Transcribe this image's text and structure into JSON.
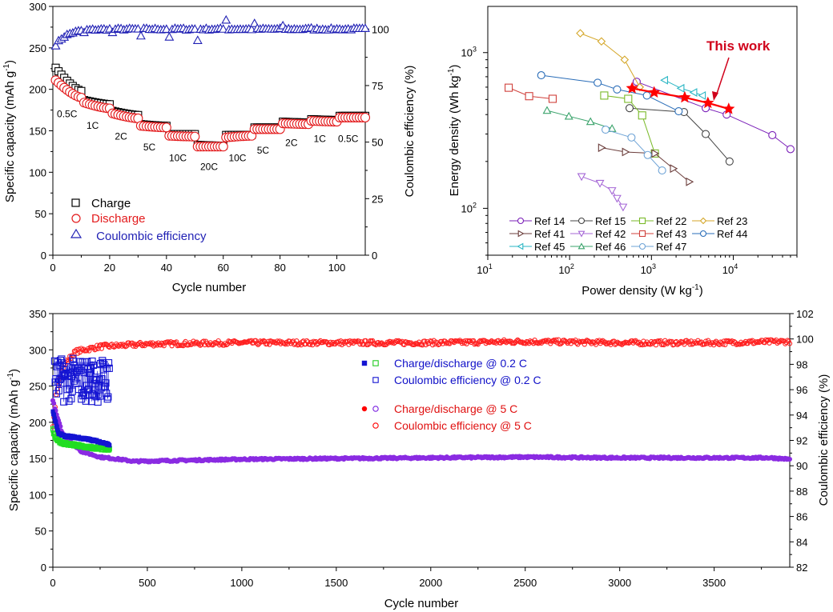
{
  "chart_data": [
    {
      "id": "rate",
      "type": "scatter",
      "title": "",
      "xlabel": "Cycle number",
      "ylabel": "Specific capacity (mAh g⁻¹)",
      "ylabel_main": "Specific capacity (mAh g",
      "ylabel_sup": "-1",
      "y2label": "Coulombic efficiency (%)",
      "xlim": [
        0,
        110
      ],
      "ylim": [
        0,
        300
      ],
      "y2lim": [
        0,
        110
      ],
      "xticks": [
        0,
        20,
        40,
        60,
        80,
        100
      ],
      "yticks": [
        0,
        50,
        100,
        150,
        200,
        250,
        300
      ],
      "y2ticks": [
        0,
        25,
        50,
        75,
        100
      ],
      "legend": [
        {
          "name": "Charge",
          "marker": "square",
          "color": "#000000"
        },
        {
          "name": "Discharge",
          "marker": "circle",
          "color": "#e31a1c"
        },
        {
          "name": " Coulombic efficiency",
          "marker": "triangle",
          "color": "#1f1fb4"
        }
      ],
      "rate_labels": [
        {
          "text": "0.5C",
          "x": 5,
          "y": 180
        },
        {
          "text": "1C",
          "x": 14,
          "y": 166
        },
        {
          "text": "2C",
          "x": 24,
          "y": 153
        },
        {
          "text": "5C",
          "x": 34,
          "y": 140
        },
        {
          "text": "10C",
          "x": 44,
          "y": 127
        },
        {
          "text": "20C",
          "x": 55,
          "y": 116
        },
        {
          "text": "10C",
          "x": 65,
          "y": 127
        },
        {
          "text": "5C",
          "x": 74,
          "y": 136
        },
        {
          "text": "2C",
          "x": 84,
          "y": 145
        },
        {
          "text": "1C",
          "x": 94,
          "y": 150
        },
        {
          "text": "0.5C",
          "x": 104,
          "y": 150
        }
      ],
      "segments": [
        {
          "rate": "0.5C",
          "from": 1,
          "to": 10,
          "charge_start": 226,
          "charge_end": 198,
          "discharge_start": 211,
          "discharge_end": 190
        },
        {
          "rate": "1C",
          "from": 11,
          "to": 20,
          "charge_start": 187,
          "charge_end": 182,
          "discharge_start": 184,
          "discharge_end": 177
        },
        {
          "rate": "2C",
          "from": 21,
          "to": 30,
          "charge_start": 174,
          "charge_end": 169,
          "discharge_start": 171,
          "discharge_end": 165
        },
        {
          "rate": "5C",
          "from": 31,
          "to": 40,
          "charge_start": 158,
          "charge_end": 156,
          "discharge_start": 156,
          "discharge_end": 154
        },
        {
          "rate": "10C",
          "from": 41,
          "to": 50,
          "charge_start": 146,
          "charge_end": 146,
          "discharge_start": 144,
          "discharge_end": 143
        },
        {
          "rate": "20C",
          "from": 51,
          "to": 60,
          "charge_start": 133,
          "charge_end": 132,
          "discharge_start": 131,
          "discharge_end": 131
        },
        {
          "rate": "10C",
          "from": 61,
          "to": 70,
          "charge_start": 145,
          "charge_end": 145,
          "discharge_start": 142,
          "discharge_end": 144
        },
        {
          "rate": "5C",
          "from": 71,
          "to": 80,
          "charge_start": 154,
          "charge_end": 154,
          "discharge_start": 152,
          "discharge_end": 152
        },
        {
          "rate": "2C",
          "from": 81,
          "to": 90,
          "charge_start": 161,
          "charge_end": 160,
          "discharge_start": 159,
          "discharge_end": 158
        },
        {
          "rate": "1C",
          "from": 91,
          "to": 100,
          "charge_start": 164,
          "charge_end": 163,
          "discharge_start": 162,
          "discharge_end": 161
        },
        {
          "rate": "0.5C",
          "from": 101,
          "to": 110,
          "charge_start": 168,
          "charge_end": 168,
          "discharge_start": 166,
          "discharge_end": 166
        }
      ],
      "ce_series": {
        "start": 93,
        "plateau": 100,
        "outliers": [
          {
            "x": 11,
            "y": 98.5
          },
          {
            "x": 21,
            "y": 98.5
          },
          {
            "x": 31,
            "y": 97
          },
          {
            "x": 41,
            "y": 96.5
          },
          {
            "x": 51,
            "y": 95
          },
          {
            "x": 61,
            "y": 104
          },
          {
            "x": 71,
            "y": 102.5
          },
          {
            "x": 81,
            "y": 101.5
          },
          {
            "x": 91,
            "y": 100.5
          },
          {
            "x": 101,
            "y": 100
          }
        ]
      }
    },
    {
      "id": "ragone",
      "type": "line",
      "title": "",
      "xlabel_main": "Power density (W kg",
      "xlabel_sup": "-1",
      "ylabel_main": "Energy density (Wh kg",
      "ylabel_sup": "-1",
      "xscale": "log",
      "yscale": "log",
      "xlim": [
        10,
        60000
      ],
      "ylim": [
        50,
        1980
      ],
      "xticks": [
        {
          "base": "10",
          "exp": "1"
        },
        {
          "base": "10",
          "exp": "2"
        },
        {
          "base": "10",
          "exp": "3"
        },
        {
          "base": "10",
          "exp": "4"
        }
      ],
      "yticks": [
        {
          "base": "10",
          "exp": "2"
        },
        {
          "base": "10",
          "exp": "3"
        }
      ],
      "annotation": {
        "text": "This work",
        "color": "#d0021b"
      },
      "legend_position": "bottom",
      "series": [
        {
          "name": "This work",
          "color": "#ff0000",
          "marker": "star",
          "points": [
            [
              580,
              590
            ],
            [
              1080,
              555
            ],
            [
              2550,
              515
            ],
            [
              4900,
              475
            ],
            [
              8800,
              435
            ]
          ]
        },
        {
          "name": "Ref 14",
          "color": "#7a1fb8",
          "marker": "circle",
          "points": [
            [
              660,
              650
            ],
            [
              4600,
              440
            ],
            [
              8300,
              400
            ],
            [
              30000,
              295
            ],
            [
              50000,
              240
            ]
          ]
        },
        {
          "name": "Ref 15",
          "color": "#444444",
          "marker": "circle",
          "points": [
            [
              540,
              440
            ],
            [
              2500,
              415
            ],
            [
              4600,
              300
            ],
            [
              9000,
              200
            ]
          ]
        },
        {
          "name": "Ref 22",
          "color": "#7aba2a",
          "marker": "square",
          "points": [
            [
              265,
              530
            ],
            [
              520,
              505
            ],
            [
              770,
              395
            ],
            [
              1100,
              225
            ]
          ]
        },
        {
          "name": "Ref 23",
          "color": "#d4a628",
          "marker": "diamond",
          "points": [
            [
              135,
              1330
            ],
            [
              245,
              1180
            ],
            [
              470,
              900
            ],
            [
              720,
              600
            ]
          ]
        },
        {
          "name": "Ref 41",
          "color": "#6b3d3b",
          "marker": "triangle-right",
          "points": [
            [
              245,
              245
            ],
            [
              480,
              230
            ],
            [
              1100,
              225
            ],
            [
              1850,
              180
            ],
            [
              2900,
              148
            ]
          ]
        },
        {
          "name": "Ref 42",
          "color": "#a567d6",
          "marker": "triangle-down",
          "points": [
            [
              140,
              160
            ],
            [
              235,
              145
            ],
            [
              330,
              130
            ],
            [
              380,
              116
            ],
            [
              450,
              102
            ]
          ]
        },
        {
          "name": "Ref 43",
          "color": "#d0403b",
          "marker": "square",
          "points": [
            [
              18,
              595
            ],
            [
              32,
              525
            ],
            [
              62,
              505
            ]
          ]
        },
        {
          "name": "Ref 44",
          "color": "#2a6db8",
          "marker": "circle",
          "points": [
            [
              45,
              715
            ],
            [
              220,
              640
            ],
            [
              380,
              580
            ],
            [
              880,
              530
            ],
            [
              2150,
              420
            ]
          ]
        },
        {
          "name": "Ref 45",
          "color": "#2ab6c4",
          "marker": "triangle-left",
          "points": [
            [
              1450,
              665
            ],
            [
              2300,
              590
            ],
            [
              3300,
              555
            ],
            [
              4200,
              530
            ]
          ]
        },
        {
          "name": "Ref 46",
          "color": "#3aa36b",
          "marker": "triangle-up",
          "points": [
            [
              53,
              425
            ],
            [
              98,
              390
            ],
            [
              180,
              360
            ],
            [
              330,
              325
            ]
          ]
        },
        {
          "name": "Ref 47",
          "color": "#6ea3d6",
          "marker": "circle",
          "points": [
            [
              275,
              320
            ],
            [
              570,
              285
            ],
            [
              900,
              220
            ],
            [
              1350,
              175
            ]
          ]
        }
      ],
      "legend": [
        "Ref 14",
        "Ref 15",
        "Ref 22",
        "Ref 23",
        "Ref 41",
        "Ref 42",
        "Ref 43",
        "Ref 44",
        "Ref 45",
        "Ref 46",
        "Ref 47"
      ]
    },
    {
      "id": "longcycle",
      "type": "scatter",
      "title": "",
      "xlabel": "Cycle number",
      "ylabel_main": "Specific capacity (mAh g",
      "ylabel_sup": "-1",
      "y2label": "Coulombic efficiency (%)",
      "xlim": [
        0,
        3900
      ],
      "ylim": [
        0,
        350
      ],
      "y2lim": [
        82,
        102
      ],
      "xticks": [
        0,
        500,
        1000,
        1500,
        2000,
        2500,
        3000,
        3500
      ],
      "yticks": [
        0,
        50,
        100,
        150,
        200,
        250,
        300,
        350
      ],
      "y2ticks": [
        82,
        84,
        86,
        88,
        90,
        92,
        94,
        96,
        98,
        100,
        102
      ],
      "legend": [
        {
          "text": "Charge/discharge @ 0.2 C",
          "color": "#1010c8",
          "markers": [
            {
              "shape": "square-filled",
              "color": "#1414d2"
            },
            {
              "shape": "square-open",
              "color": "#22cc22"
            }
          ]
        },
        {
          "text": "Coulombic efficiency @ 0.2 C",
          "color": "#1010c8",
          "markers": [
            {
              "shape": "square-open",
              "color": "#1414d2"
            }
          ]
        },
        {
          "text": "Charge/discharge @ 5 C",
          "color": "#e01010",
          "markers": [
            {
              "shape": "circle-filled",
              "color": "#ff0000"
            },
            {
              "shape": "circle-open",
              "color": "#7a1fe0"
            }
          ]
        },
        {
          "text": "Coulombic efficiency @ 5 C",
          "color": "#e01010",
          "markers": [
            {
              "shape": "circle-open",
              "color": "#ff0000"
            }
          ]
        }
      ],
      "series": [
        {
          "name": "Charge @ 0.2 C",
          "color": "#1414d2",
          "axis": "left",
          "points": [
            [
              0,
              215
            ],
            [
              10,
              205
            ],
            [
              30,
              185
            ],
            [
              60,
              181
            ],
            [
              100,
              180
            ],
            [
              150,
              178
            ],
            [
              200,
              176
            ],
            [
              250,
              173
            ],
            [
              300,
              169
            ]
          ]
        },
        {
          "name": "Discharge @ 0.2 C",
          "color": "#22dd22",
          "axis": "left",
          "points": [
            [
              0,
              190
            ],
            [
              10,
              180
            ],
            [
              30,
              174
            ],
            [
              60,
              171
            ],
            [
              100,
              169
            ],
            [
              150,
              167
            ],
            [
              200,
              165
            ],
            [
              250,
              164
            ],
            [
              300,
              162
            ]
          ]
        },
        {
          "name": "Coulombic efficiency @ 0.2 C",
          "color": "#1414d2",
          "axis": "right",
          "range": [
            95,
            98.5
          ],
          "span": [
            10,
            300
          ]
        },
        {
          "name": "Charge/discharge @ 5 C",
          "color": "#8a2be2",
          "axis": "left",
          "points": [
            [
              0,
              230
            ],
            [
              20,
              210
            ],
            [
              50,
              185
            ],
            [
              100,
              172
            ],
            [
              150,
              160
            ],
            [
              250,
              152
            ],
            [
              350,
              149
            ],
            [
              430,
              146
            ],
            [
              600,
              147
            ],
            [
              1000,
              149
            ],
            [
              1500,
              150
            ],
            [
              2000,
              151
            ],
            [
              2500,
              152
            ],
            [
              3000,
              151
            ],
            [
              3500,
              151
            ],
            [
              3800,
              151
            ],
            [
              3900,
              149
            ]
          ]
        },
        {
          "name": "Coulombic efficiency @ 5 C",
          "color": "#ff2020",
          "axis": "right",
          "points": [
            [
              0,
              93
            ],
            [
              20,
              96
            ],
            [
              60,
              98
            ],
            [
              120,
              99
            ],
            [
              250,
              99.4
            ],
            [
              500,
              99.6
            ],
            [
              1000,
              99.7
            ],
            [
              2000,
              99.7
            ],
            [
              2500,
              99.8
            ],
            [
              3000,
              99.7
            ],
            [
              3500,
              99.7
            ],
            [
              3900,
              99.8
            ]
          ]
        }
      ]
    }
  ]
}
